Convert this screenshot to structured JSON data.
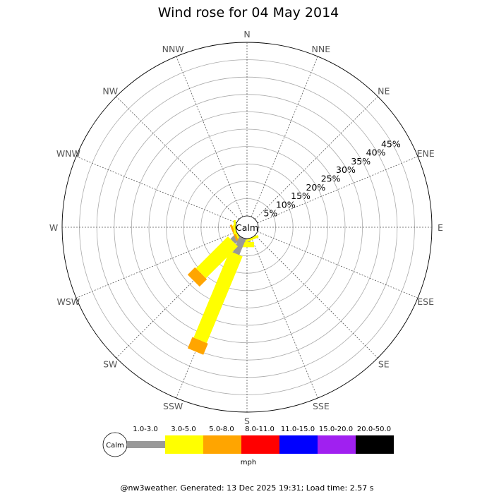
{
  "chart_data": {
    "type": "wind-rose",
    "title": "Wind rose for 04 May 2014",
    "center_label": "Calm",
    "directions": [
      "N",
      "NNE",
      "NE",
      "ENE",
      "E",
      "ESE",
      "SE",
      "SSE",
      "S",
      "SSW",
      "SW",
      "WSW",
      "W",
      "WNW",
      "NW",
      "NNW"
    ],
    "radial_ticks": [
      "5%",
      "10%",
      "15%",
      "20%",
      "25%",
      "30%",
      "35%",
      "40%",
      "45%"
    ],
    "radial_max_percent": 50,
    "units": "mph",
    "speed_bins": [
      {
        "label": "1.0-3.0",
        "color": "#999999"
      },
      {
        "label": "3.0-5.0",
        "color": "#ffff00"
      },
      {
        "label": "5.0-8.0",
        "color": "#ffa500"
      },
      {
        "label": "8.0-11.0",
        "color": "#ff0000"
      },
      {
        "label": "11.0-15.0",
        "color": "#0000ff"
      },
      {
        "label": "15.0-20.0",
        "color": "#a020f0"
      },
      {
        "label": "20.0-50.0",
        "color": "#000000"
      }
    ],
    "series": [
      {
        "direction": "S",
        "segments": [
          1.0,
          1.5
        ]
      },
      {
        "direction": "SSE",
        "segments": [
          0.0,
          0.7
        ]
      },
      {
        "direction": "SSW",
        "segments": [
          5.0,
          27.0,
          3.5
        ]
      },
      {
        "direction": "SW",
        "segments": [
          2.5,
          13.0,
          3.0
        ]
      },
      {
        "direction": "WSW",
        "segments": [
          0.0,
          0.5,
          0.6
        ]
      },
      {
        "direction": "W",
        "segments": [
          0.0,
          0.6
        ]
      }
    ]
  },
  "legend": {
    "calm_label": "Calm",
    "units_label": "mph"
  },
  "footer": "@nw3weather. Generated: 13 Dec 2025 19:31; Load time: 2.57 s"
}
